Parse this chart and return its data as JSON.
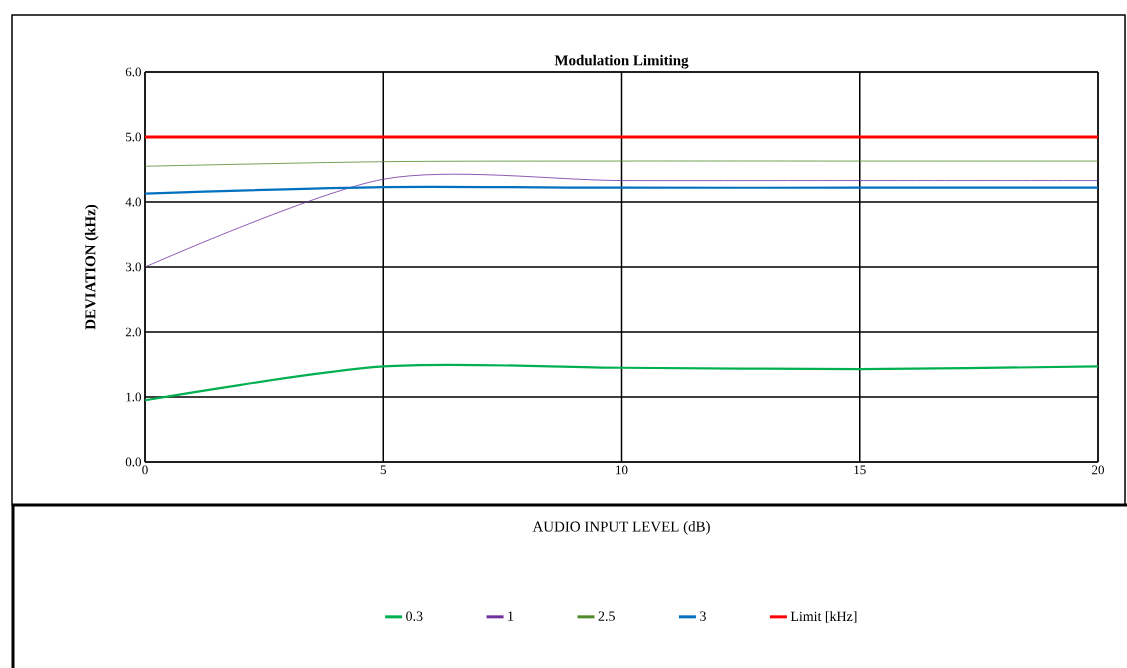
{
  "chart_data": {
    "type": "line",
    "title": "Modulation Limiting",
    "xlabel": "AUDIO INPUT LEVEL  (dB)",
    "ylabel": "DEVIATION (kHz)",
    "x": [
      0,
      5,
      10,
      15,
      20
    ],
    "series": [
      {
        "name": "0.3",
        "color": "#00b050",
        "values": [
          0.95,
          1.47,
          1.45,
          1.43,
          1.47
        ]
      },
      {
        "name": "1",
        "color": "#7030a0",
        "values": [
          3.0,
          4.35,
          4.33,
          4.33,
          4.33
        ]
      },
      {
        "name": "2.5",
        "color": "#4f8a2a",
        "values": [
          4.55,
          4.62,
          4.63,
          4.63,
          4.63
        ]
      },
      {
        "name": "3",
        "color": "#0070c0",
        "values": [
          4.13,
          4.23,
          4.22,
          4.22,
          4.22
        ]
      },
      {
        "name": "Limit [kHz]",
        "color": "#ff0000",
        "values": [
          5.0,
          5.0,
          5.0,
          5.0,
          5.0
        ]
      }
    ],
    "xlim": [
      0,
      20
    ],
    "xticks": [
      0,
      5,
      10,
      15,
      20
    ],
    "ylim": [
      0,
      6
    ],
    "yticks": [
      {
        "value": 0,
        "label": "0.0"
      },
      {
        "value": 1,
        "label": "1.0"
      },
      {
        "value": 2,
        "label": "2.0"
      },
      {
        "value": 3,
        "label": "3.0"
      },
      {
        "value": 4,
        "label": "4.0"
      },
      {
        "value": 5,
        "label": "5.0"
      },
      {
        "value": 6,
        "label": "6.0"
      }
    ],
    "grid": true,
    "legend": "bottom",
    "marker": "none",
    "line_style": "solid"
  }
}
